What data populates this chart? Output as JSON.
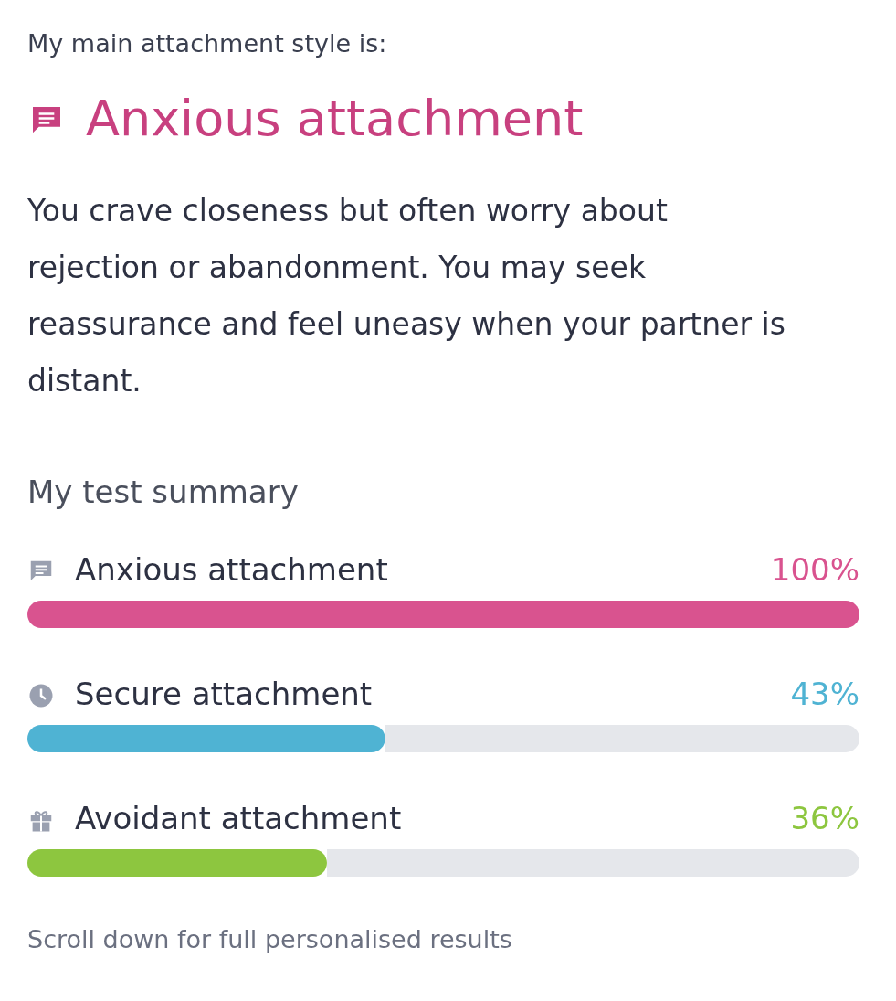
{
  "chart_data": {
    "type": "bar",
    "orientation": "horizontal",
    "title": "My main attachment style is:",
    "subtitle": "Anxious attachment",
    "annotations": [
      "You crave closeness but often worry about rejection or abandonment. You may seek reassurance and feel uneasy when your partner is distant.",
      "My test summary",
      "Scroll down for full personalised results"
    ],
    "categories": [
      "Anxious attachment",
      "Secure attachment",
      "Avoidant attachment"
    ],
    "values": [
      100,
      43,
      36
    ],
    "colors": [
      "#d9538f",
      "#4fb3d3",
      "#8dc63f"
    ],
    "value_labels": [
      "100%",
      "43%",
      "36%"
    ],
    "xlim": [
      0,
      100
    ]
  }
}
